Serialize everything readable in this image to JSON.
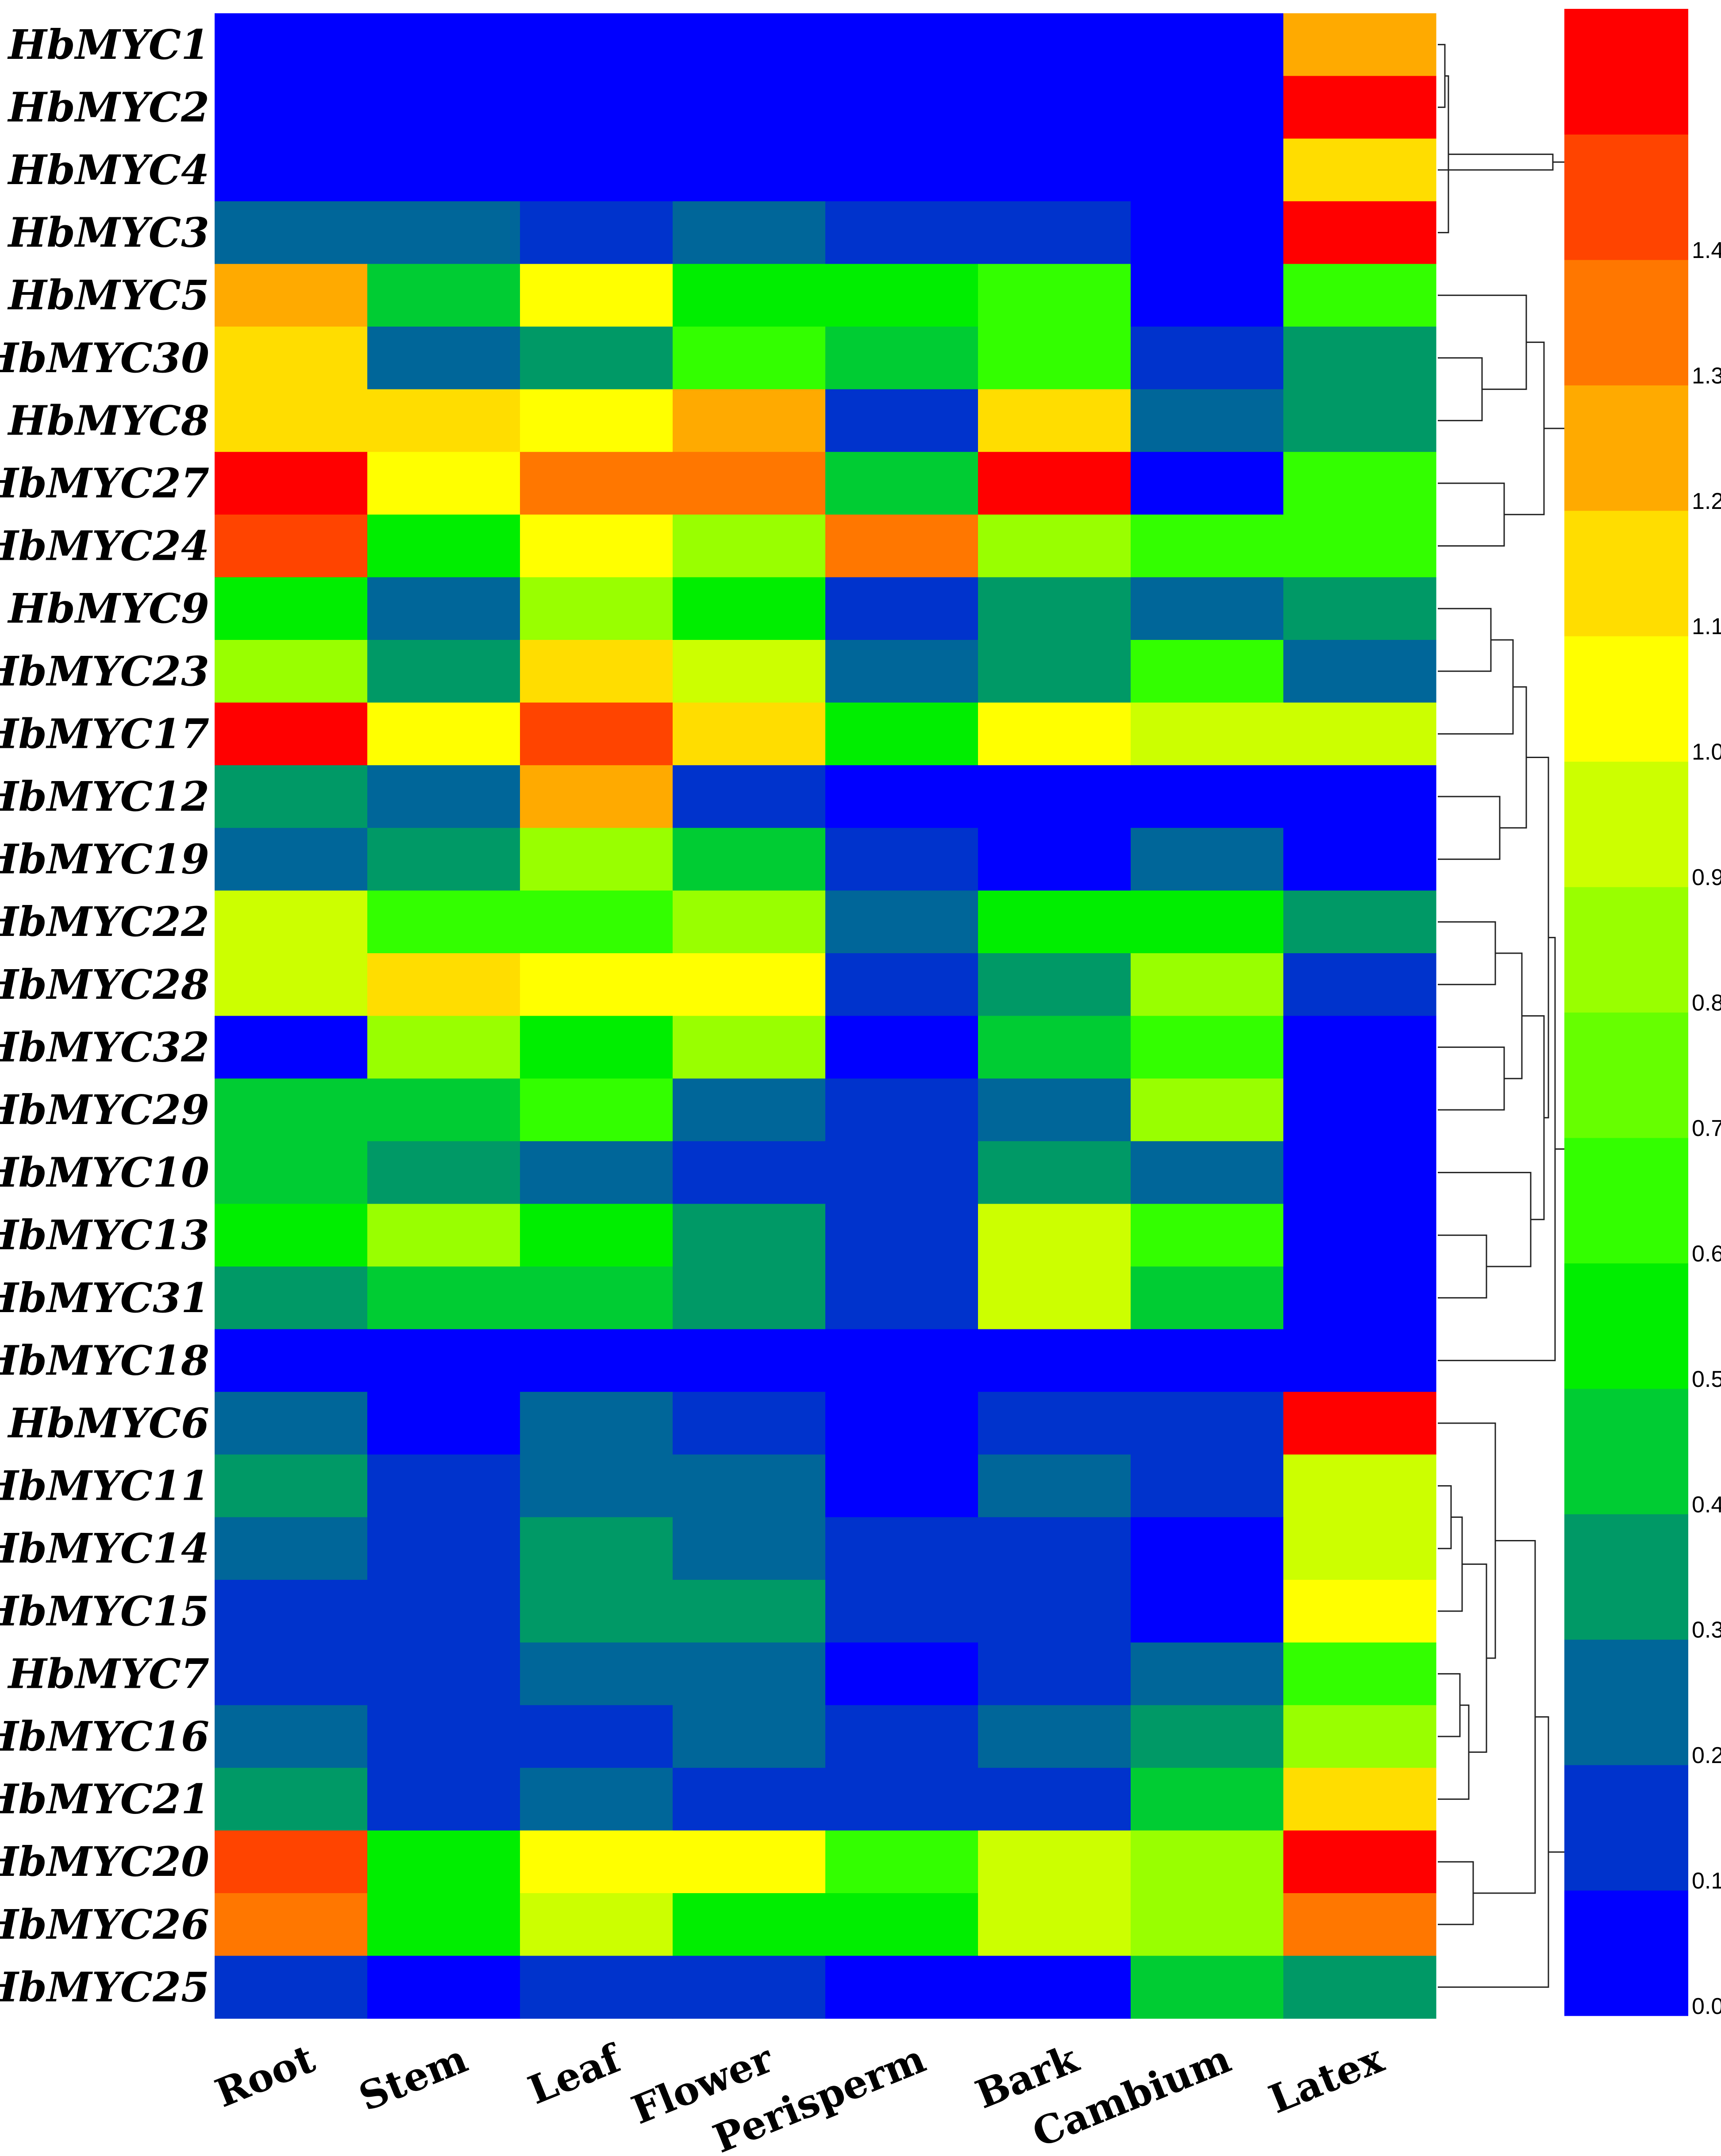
{
  "chart_data": {
    "type": "heatmap",
    "title": "",
    "xlabel": "",
    "ylabel": "",
    "columns": [
      "Root",
      "Stem",
      "Leaf",
      "Flower",
      "Perisperm",
      "Bark",
      "Cambium",
      "Latex"
    ],
    "rows": [
      "HbMYC1",
      "HbMYC2",
      "HbMYC4",
      "HbMYC3",
      "HbMYC5",
      "HbMYC30",
      "HbMYC8",
      "HbMYC27",
      "HbMYC24",
      "HbMYC9",
      "HbMYC23",
      "HbMYC17",
      "HbMYC12",
      "HbMYC19",
      "HbMYC22",
      "HbMYC28",
      "HbMYC32",
      "HbMYC29",
      "HbMYC10",
      "HbMYC13",
      "HbMYC31",
      "HbMYC18",
      "HbMYC6",
      "HbMYC11",
      "HbMYC14",
      "HbMYC15",
      "HbMYC7",
      "HbMYC16",
      "HbMYC21",
      "HbMYC20",
      "HbMYC26",
      "HbMYC25"
    ],
    "values": [
      [
        0.0,
        0.0,
        0.0,
        0.0,
        0.0,
        0.0,
        0.0,
        1.2
      ],
      [
        0.0,
        0.0,
        0.0,
        0.0,
        0.0,
        0.0,
        0.0,
        1.5
      ],
      [
        0.0,
        0.0,
        0.0,
        0.0,
        0.0,
        0.0,
        0.0,
        1.1
      ],
      [
        0.26,
        0.26,
        0.15,
        0.26,
        0.15,
        0.15,
        0.0,
        1.5
      ],
      [
        1.2,
        0.47,
        1.0,
        0.57,
        0.57,
        0.68,
        0.0,
        0.68
      ],
      [
        1.1,
        0.26,
        0.36,
        0.68,
        0.47,
        0.68,
        0.15,
        0.36
      ],
      [
        1.1,
        1.1,
        1.0,
        1.2,
        0.15,
        1.1,
        0.26,
        0.36
      ],
      [
        1.5,
        1.0,
        1.3,
        1.3,
        0.47,
        1.5,
        0.0,
        0.68
      ],
      [
        1.41,
        0.57,
        1.0,
        0.79,
        1.3,
        0.79,
        0.68,
        0.68
      ],
      [
        0.57,
        0.26,
        0.79,
        0.57,
        0.15,
        0.36,
        0.26,
        0.36
      ],
      [
        0.79,
        0.36,
        1.1,
        0.89,
        0.26,
        0.36,
        0.68,
        0.26
      ],
      [
        1.5,
        1.0,
        1.41,
        1.1,
        0.57,
        1.0,
        0.89,
        0.89
      ],
      [
        0.36,
        0.26,
        1.2,
        0.15,
        0.05,
        0.05,
        0.05,
        0.05
      ],
      [
        0.26,
        0.36,
        0.79,
        0.47,
        0.15,
        0.05,
        0.26,
        0.05
      ],
      [
        0.89,
        0.68,
        0.68,
        0.79,
        0.26,
        0.57,
        0.57,
        0.36
      ],
      [
        0.89,
        1.1,
        1.0,
        1.0,
        0.15,
        0.36,
        0.79,
        0.15
      ],
      [
        0.05,
        0.79,
        0.57,
        0.79,
        0.0,
        0.47,
        0.68,
        0.05
      ],
      [
        0.47,
        0.47,
        0.68,
        0.26,
        0.15,
        0.26,
        0.79,
        0.05
      ],
      [
        0.47,
        0.36,
        0.26,
        0.15,
        0.15,
        0.36,
        0.26,
        0.05
      ],
      [
        0.57,
        0.79,
        0.57,
        0.36,
        0.15,
        0.89,
        0.68,
        0.05
      ],
      [
        0.36,
        0.47,
        0.47,
        0.36,
        0.15,
        0.89,
        0.47,
        0.05
      ],
      [
        0.05,
        0.05,
        0.05,
        0.05,
        0.05,
        0.05,
        0.05,
        0.05
      ],
      [
        0.26,
        0.0,
        0.26,
        0.15,
        0.0,
        0.15,
        0.15,
        1.5
      ],
      [
        0.36,
        0.15,
        0.26,
        0.26,
        0.0,
        0.26,
        0.15,
        0.89
      ],
      [
        0.26,
        0.15,
        0.36,
        0.26,
        0.15,
        0.15,
        0.05,
        0.89
      ],
      [
        0.15,
        0.15,
        0.36,
        0.36,
        0.15,
        0.15,
        0.05,
        1.0
      ],
      [
        0.15,
        0.15,
        0.26,
        0.26,
        0.0,
        0.15,
        0.26,
        0.68
      ],
      [
        0.26,
        0.15,
        0.15,
        0.26,
        0.15,
        0.26,
        0.36,
        0.79
      ],
      [
        0.36,
        0.15,
        0.26,
        0.15,
        0.15,
        0.15,
        0.47,
        1.1
      ],
      [
        1.41,
        0.57,
        1.0,
        1.0,
        0.68,
        0.89,
        0.79,
        1.5
      ],
      [
        1.3,
        0.57,
        0.89,
        0.57,
        0.57,
        0.89,
        0.79,
        1.3
      ],
      [
        0.15,
        0.0,
        0.15,
        0.15,
        0.0,
        0.0,
        0.47,
        0.36
      ]
    ],
    "scale": {
      "ticks": [
        "0.00",
        "0.10",
        "0.21",
        "0.31",
        "0.42",
        "0.52",
        "0.63",
        "0.73",
        "0.84",
        "0.94",
        "1.05",
        "1.15",
        "1.26",
        "1.36",
        "1.46"
      ],
      "min": 0.0,
      "max": 1.57,
      "colors": [
        "#0000ff",
        "#0033cc",
        "#006699",
        "#009966",
        "#00cc33",
        "#00ee00",
        "#33ff00",
        "#66ff00",
        "#99ff00",
        "#ccff00",
        "#ffff00",
        "#ffdd00",
        "#ffaa00",
        "#ff7700",
        "#ff4400",
        "#ff0000"
      ]
    }
  }
}
